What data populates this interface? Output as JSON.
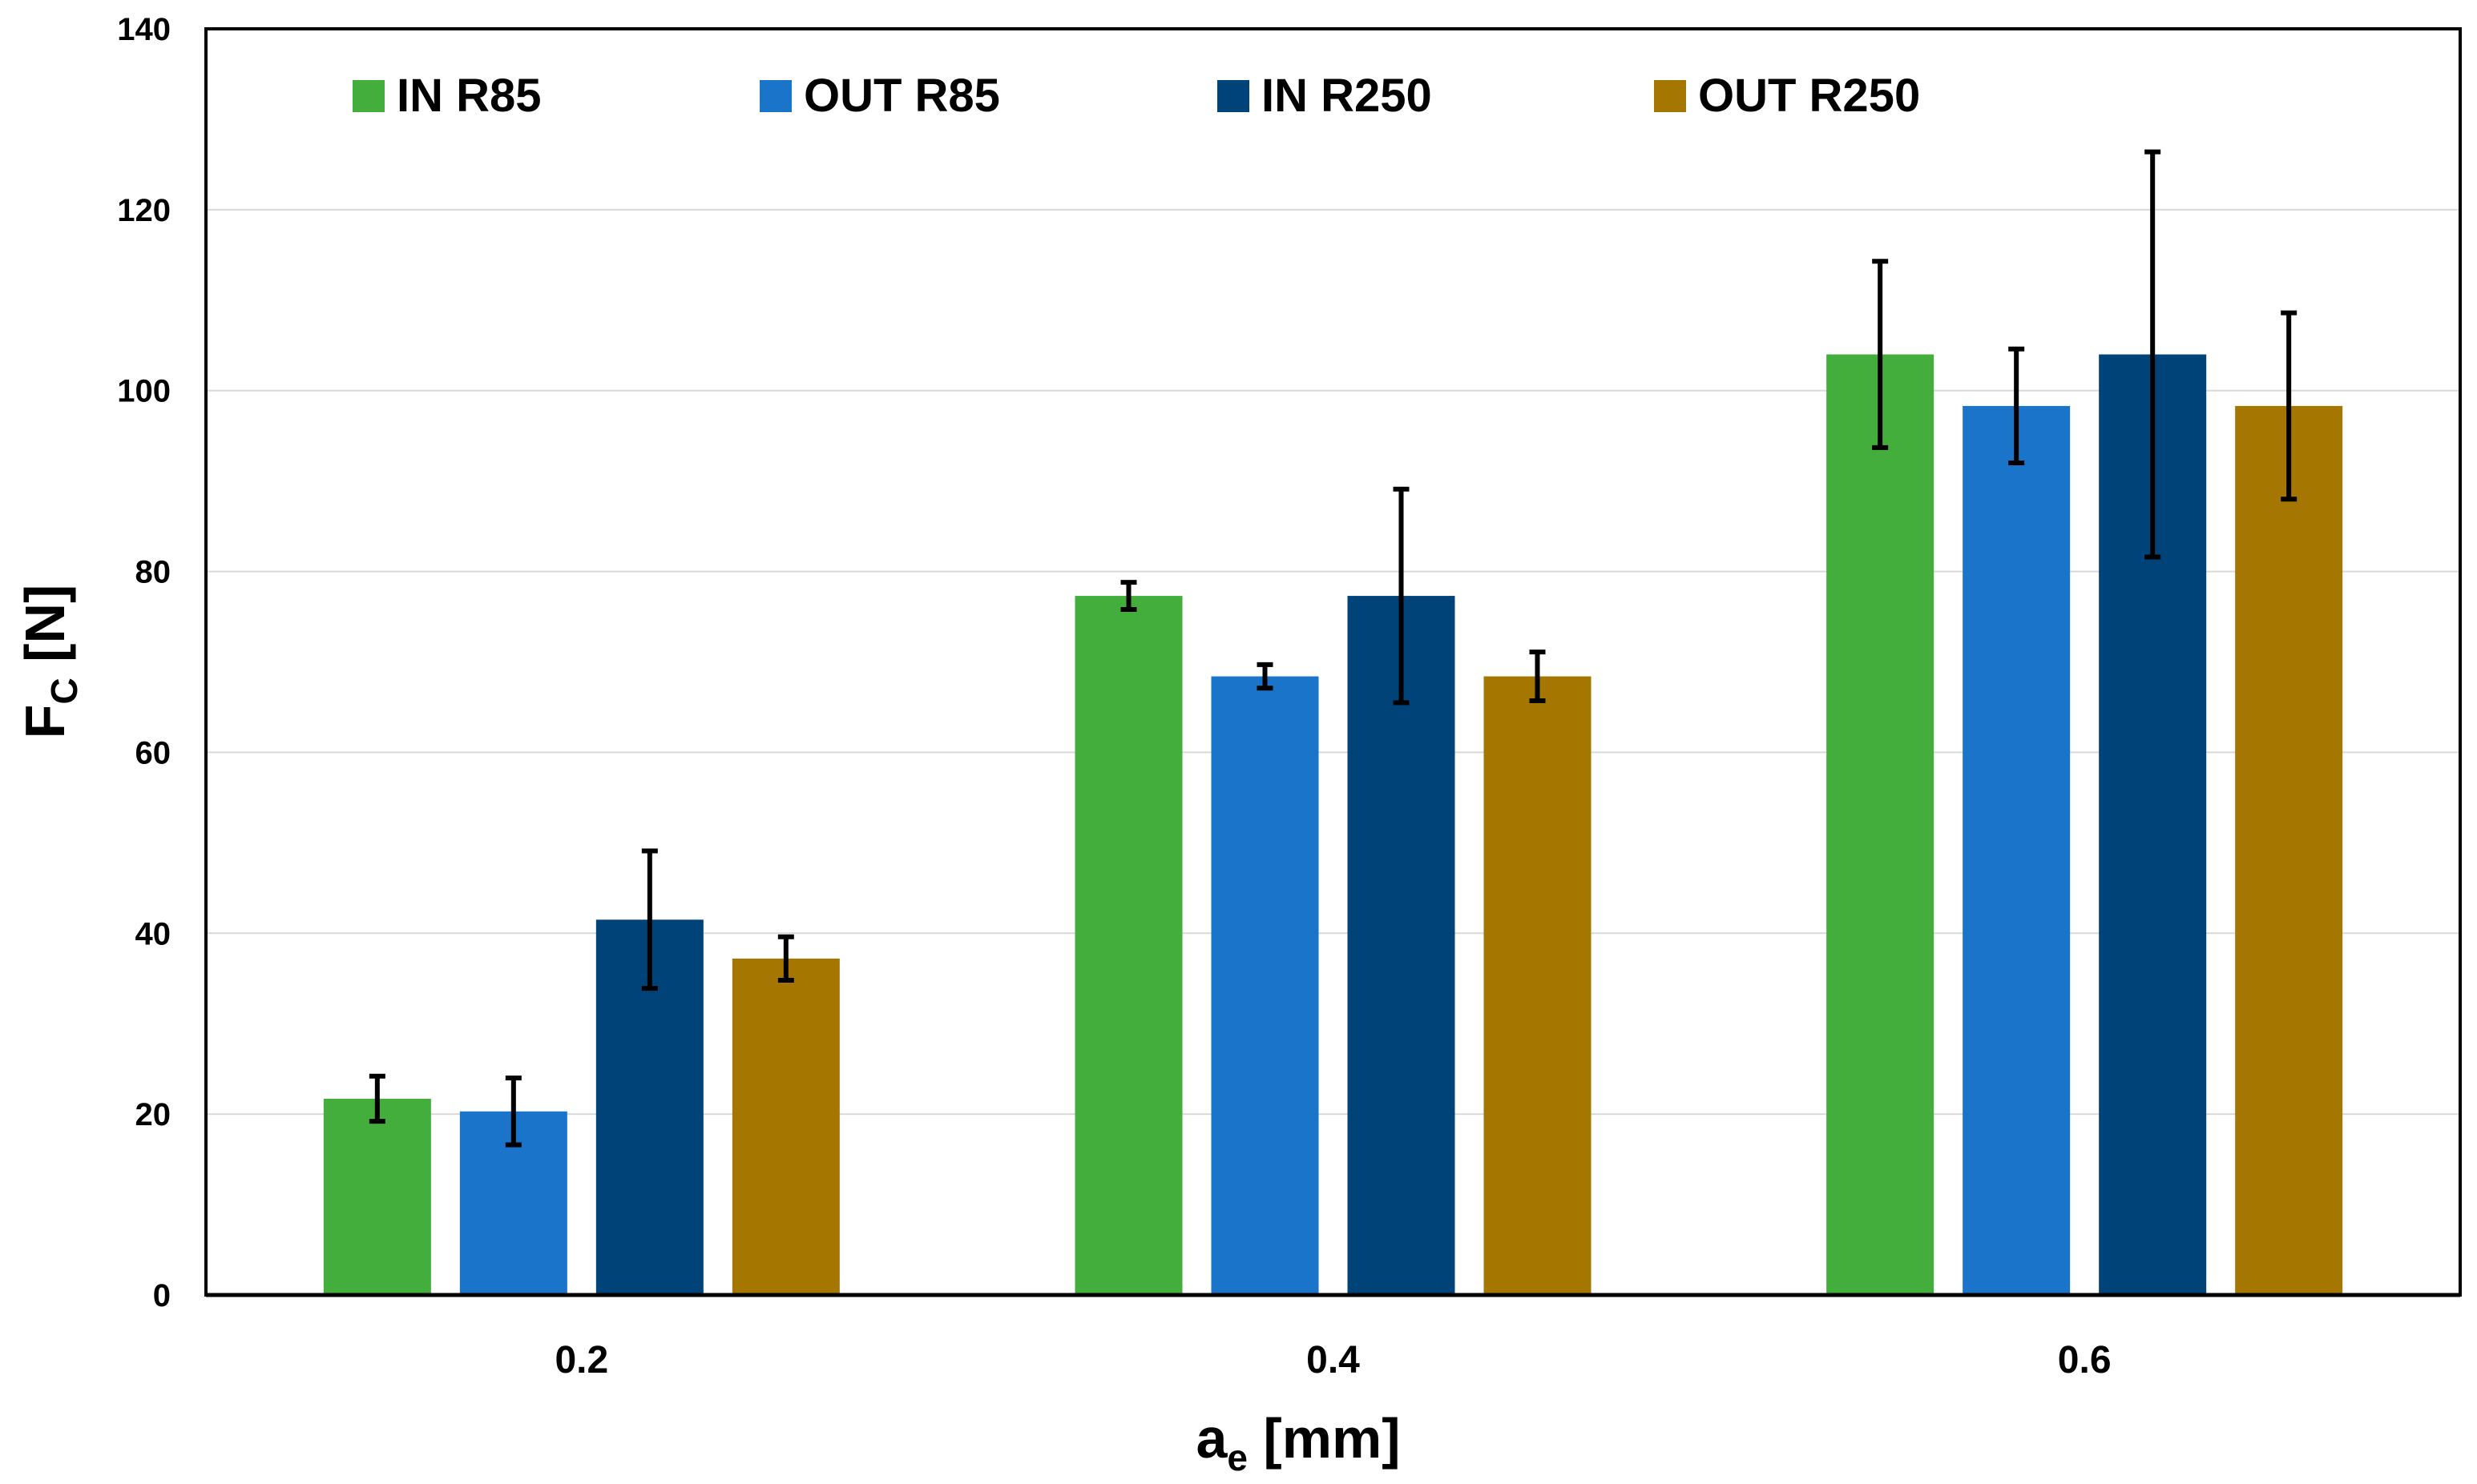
{
  "chart_data": {
    "type": "bar",
    "title": "",
    "xlabel": "a",
    "xlabel_sub": "e",
    "xlabel_unit": " [mm]",
    "ylabel": "F",
    "ylabel_sub": "C",
    "ylabel_unit": " [N]",
    "ylim": [
      0,
      140
    ],
    "yticks": [
      0,
      20,
      40,
      60,
      80,
      100,
      120,
      140
    ],
    "grid": true,
    "legend_position": "top",
    "categories": [
      "0.2",
      "0.4",
      "0.6"
    ],
    "series": [
      {
        "name": "IN R85",
        "color": "#43AE3B",
        "values": [
          21.7,
          77.3,
          104.0
        ],
        "error": [
          2.5,
          1.5,
          10.3
        ]
      },
      {
        "name": "OUT R85",
        "color": "#1A74CA",
        "values": [
          20.3,
          68.4,
          98.3
        ],
        "error": [
          3.7,
          1.3,
          6.3
        ]
      },
      {
        "name": "IN R250",
        "color": "#004379",
        "values": [
          41.5,
          77.3,
          104.0
        ],
        "error": [
          7.6,
          11.8,
          22.4
        ]
      },
      {
        "name": "OUT R250",
        "color": "#A67700",
        "values": [
          37.2,
          68.4,
          98.3
        ],
        "error": [
          2.4,
          2.7,
          10.3
        ]
      }
    ]
  }
}
